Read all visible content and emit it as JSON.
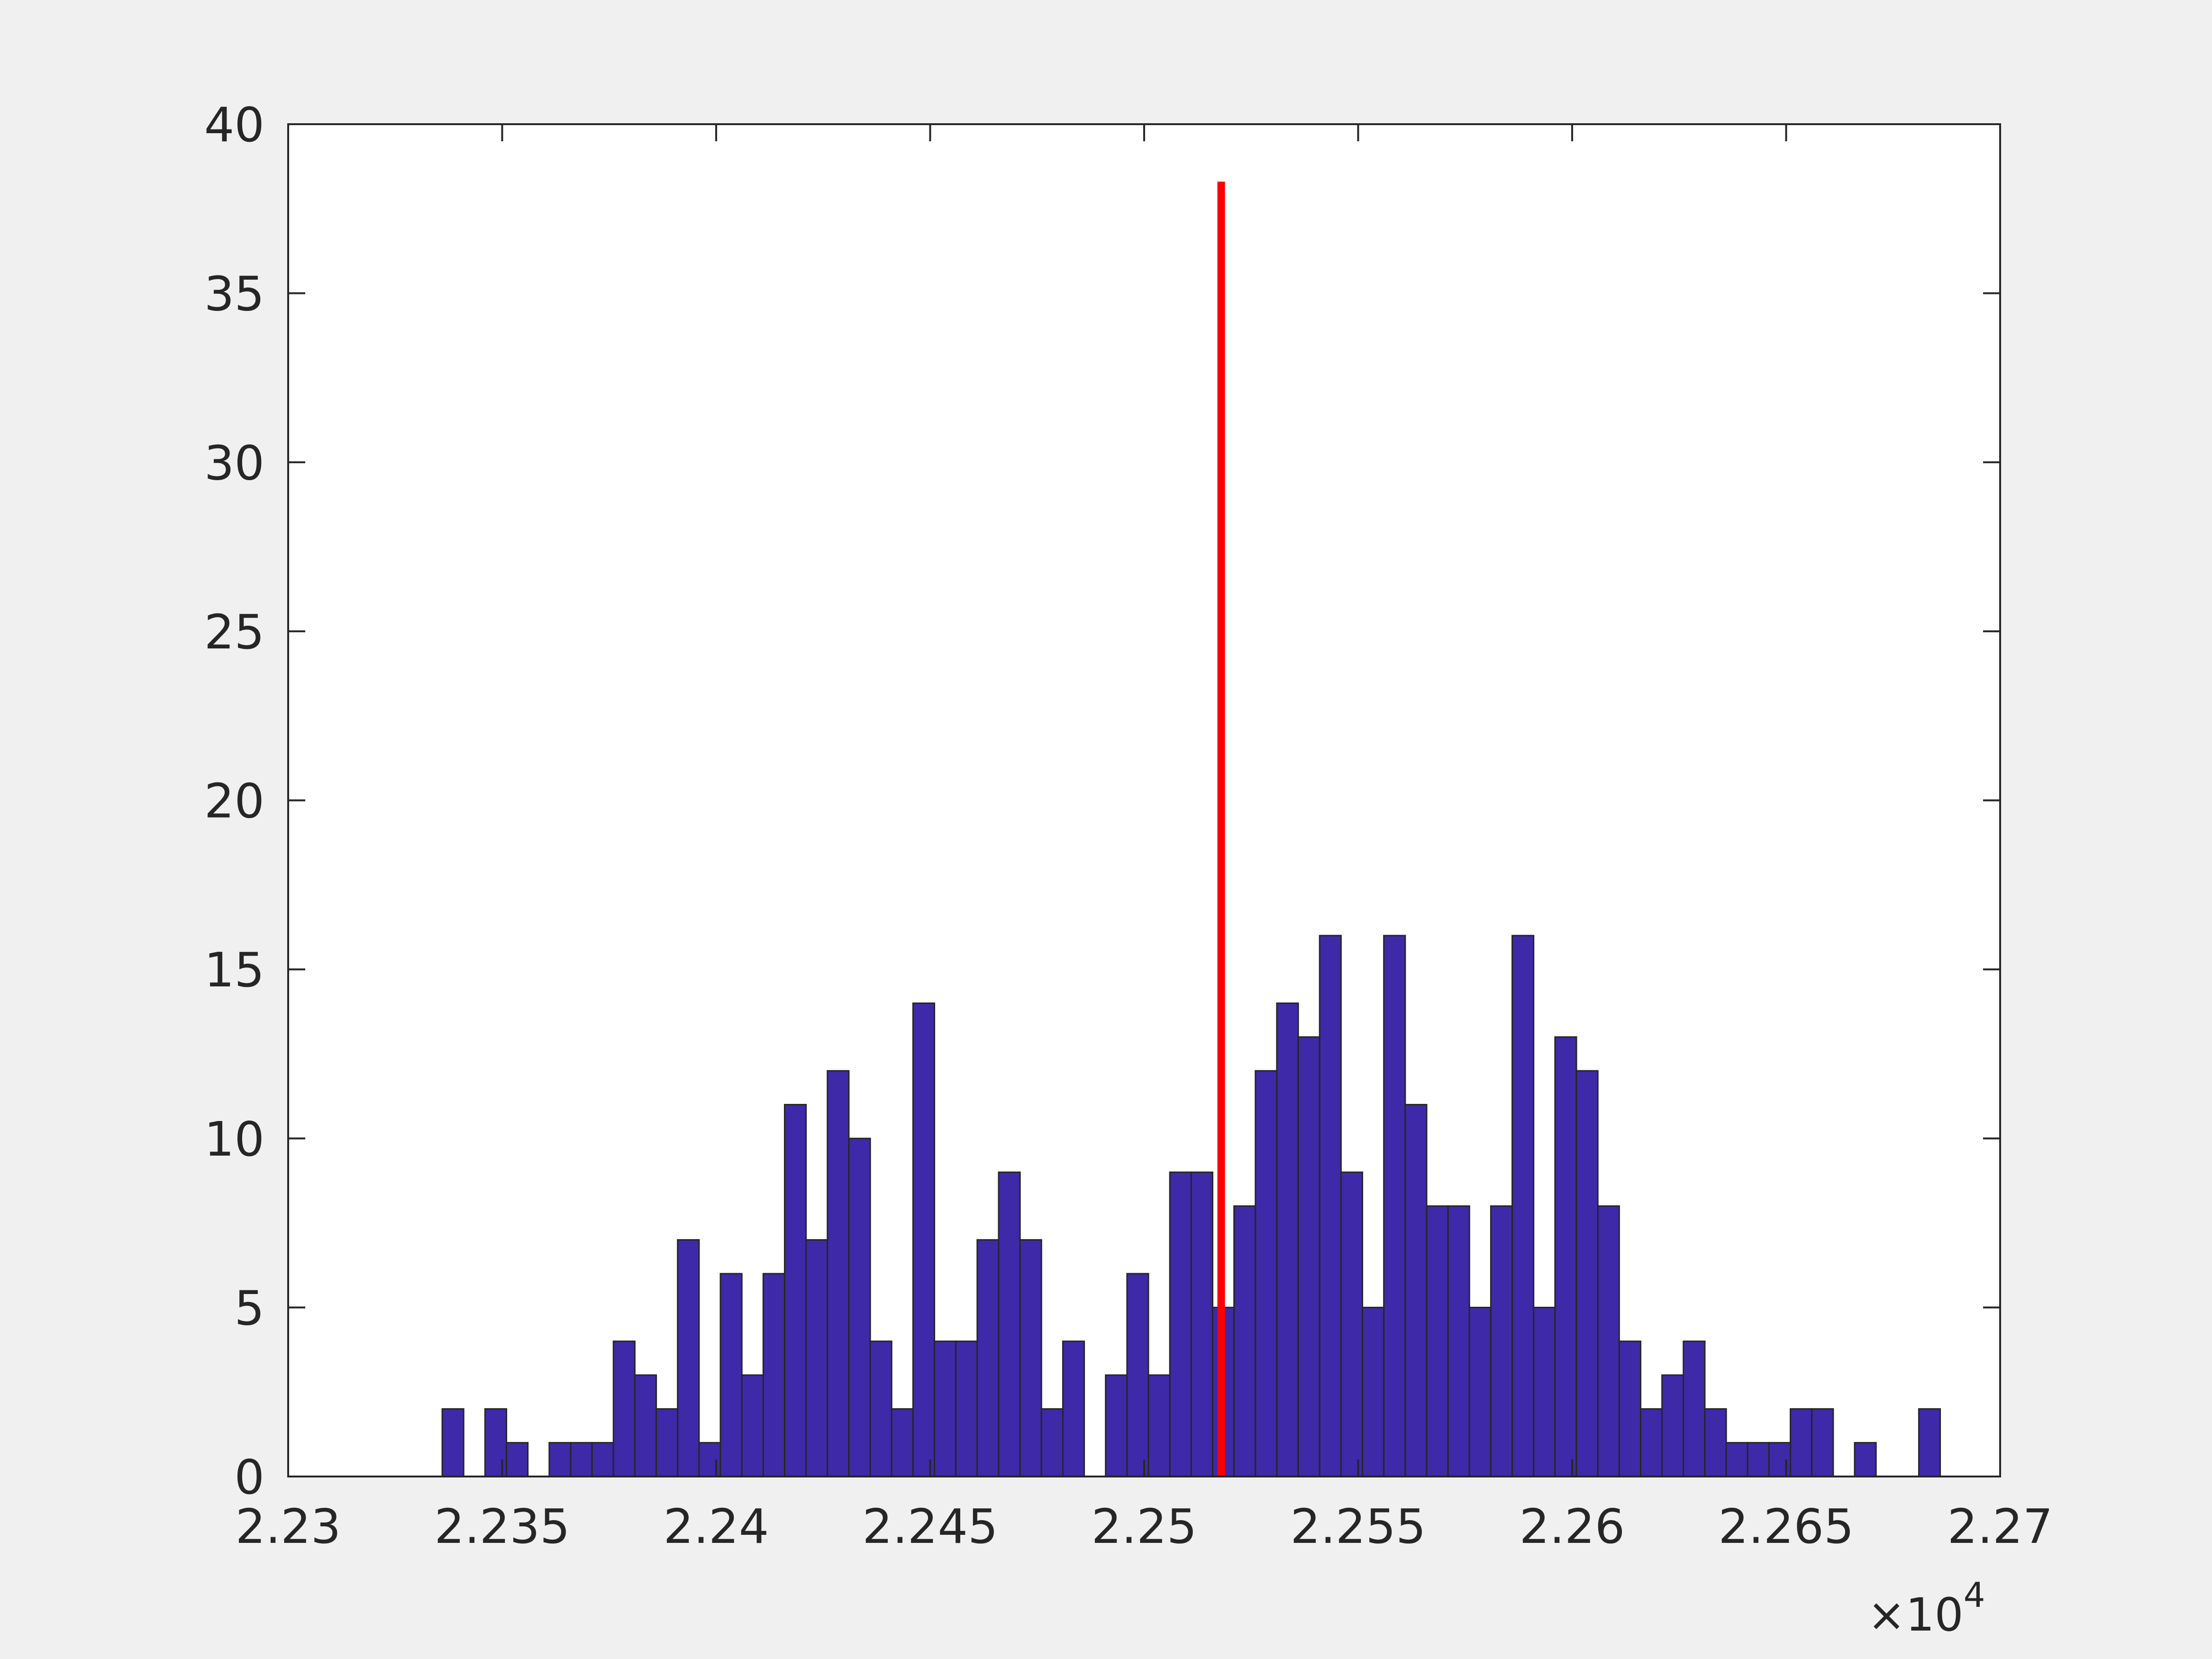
{
  "chart_data": {
    "type": "bar",
    "subtype": "histogram",
    "title": "",
    "xlabel": "",
    "ylabel": "",
    "x_exponent_label": "×10",
    "x_exponent_power": "4",
    "xlim": [
      2.23,
      2.27
    ],
    "ylim": [
      0,
      40
    ],
    "x_ticks": [
      "2.23",
      "2.235",
      "2.24",
      "2.245",
      "2.25",
      "2.255",
      "2.26",
      "2.265",
      "2.27"
    ],
    "x_tick_values": [
      2.23,
      2.235,
      2.24,
      2.245,
      2.25,
      2.255,
      2.26,
      2.265,
      2.27
    ],
    "y_ticks": [
      "0",
      "5",
      "10",
      "15",
      "20",
      "25",
      "30",
      "35",
      "40"
    ],
    "y_tick_values": [
      0,
      5,
      10,
      15,
      20,
      25,
      30,
      35,
      40
    ],
    "grid": false,
    "bin_start": 2.2336,
    "bin_width": 0.0005,
    "counts": [
      2,
      0,
      2,
      1,
      0,
      1,
      1,
      1,
      4,
      3,
      2,
      7,
      1,
      6,
      3,
      6,
      11,
      7,
      12,
      10,
      4,
      2,
      14,
      4,
      4,
      7,
      9,
      7,
      2,
      4,
      0,
      3,
      6,
      3,
      9,
      9,
      5,
      8,
      12,
      14,
      13,
      16,
      9,
      5,
      16,
      11,
      8,
      8,
      5,
      8,
      16,
      5,
      13,
      12,
      8,
      4,
      2,
      3,
      4,
      2,
      1,
      1,
      1,
      2,
      2,
      0,
      1,
      0,
      0,
      2
    ],
    "reference_line": {
      "x": 2.2518,
      "y_top": 38.3,
      "color": "#ff0000"
    },
    "bar_color": "#3e2aa8",
    "bar_edge_color": "#262626"
  }
}
